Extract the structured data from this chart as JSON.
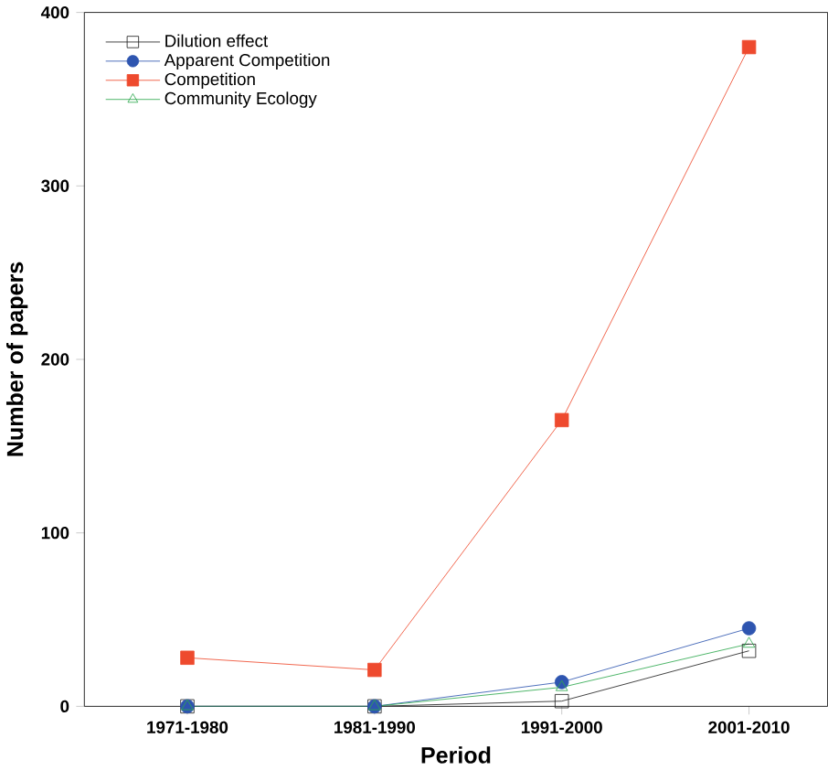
{
  "chart_data": {
    "type": "line",
    "xlabel": "Period",
    "ylabel": "Number of papers",
    "categories": [
      "1971-1980",
      "1981-1990",
      "1991-2000",
      "2001-2010"
    ],
    "series": [
      {
        "name": "Dilution effect",
        "color": "#222222",
        "marker": "square",
        "values": [
          0,
          0,
          3,
          32
        ]
      },
      {
        "name": "Apparent Competition",
        "color": "#2e55b0",
        "marker": "circle",
        "values": [
          0,
          0,
          14,
          45
        ]
      },
      {
        "name": "Competition",
        "color": "#ee4a2e",
        "marker": "square",
        "values": [
          28,
          21,
          165,
          380
        ]
      },
      {
        "name": "Community Ecology",
        "color": "#2ea84e",
        "marker": "triangle",
        "values": [
          0,
          0,
          11,
          36
        ]
      }
    ],
    "ylim": [
      0,
      400
    ],
    "yticks": [
      0,
      100,
      200,
      300,
      400
    ],
    "legend": "top left",
    "grid": false
  }
}
